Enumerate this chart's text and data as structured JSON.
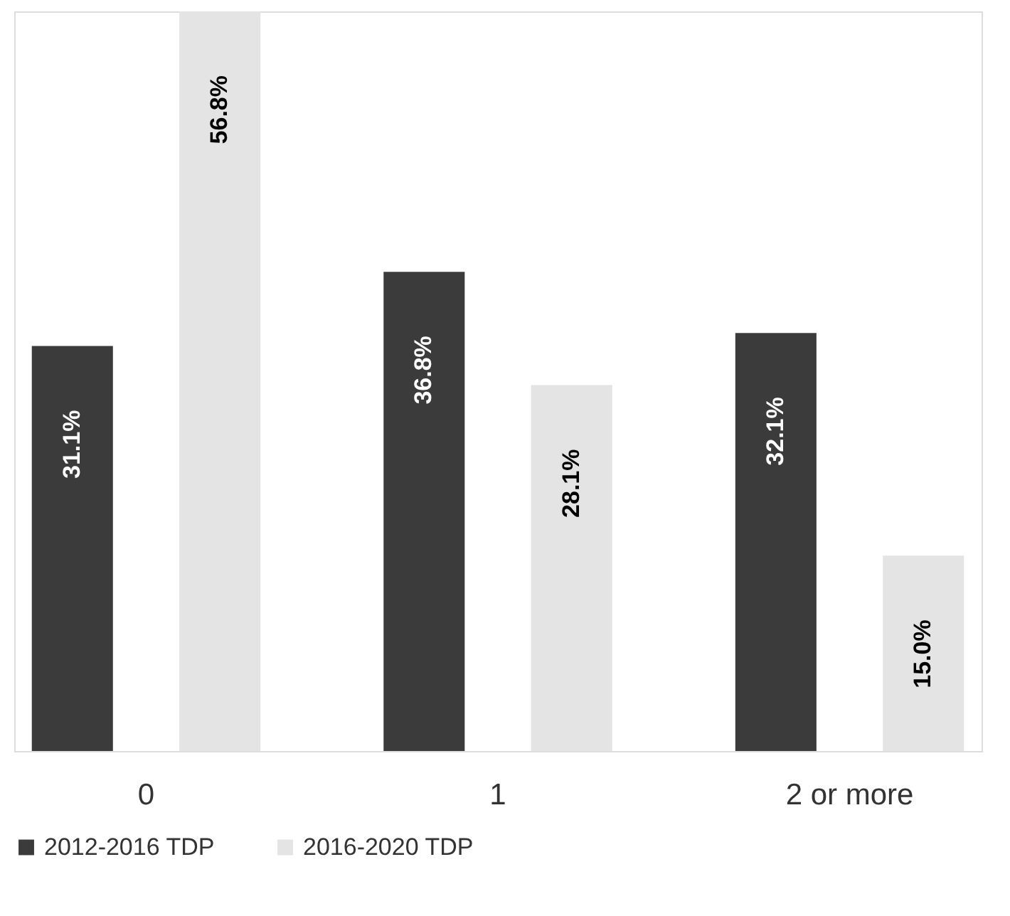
{
  "chart_data": {
    "type": "bar",
    "categories": [
      "0",
      "1",
      "2 or more"
    ],
    "series": [
      {
        "name": "2012-2016 TDP",
        "color": "#3b3b3b",
        "values": [
          31.1,
          36.8,
          32.1
        ],
        "value_labels": [
          "31.1%",
          "36.8%",
          "32.1%"
        ]
      },
      {
        "name": "2016-2020 TDP",
        "color": "#e4e4e4",
        "values": [
          56.8,
          28.1,
          15.0
        ],
        "value_labels": [
          "56.8%",
          "28.1%",
          "15.0%"
        ]
      }
    ],
    "legend": "bottom",
    "grid": false,
    "tick_labels": "x"
  }
}
